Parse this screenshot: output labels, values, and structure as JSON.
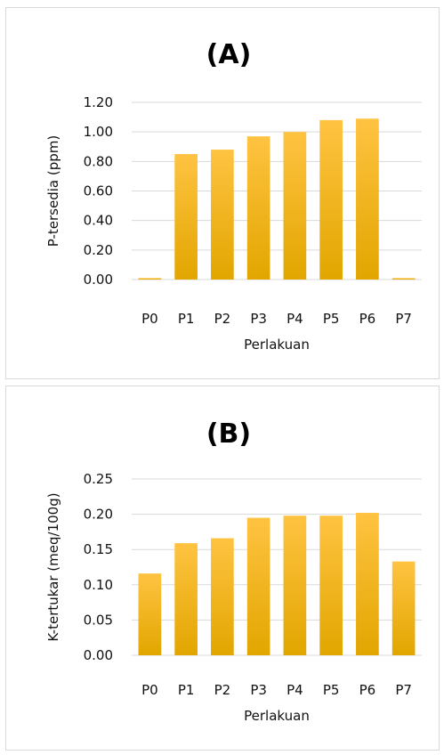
{
  "chart_data": [
    {
      "type": "bar",
      "title": "(A)",
      "xlabel": "Perlakuan",
      "ylabel": "P-tersedia (ppm)",
      "categories": [
        "P0",
        "P1",
        "P2",
        "P3",
        "P4",
        "P5",
        "P6",
        "P7"
      ],
      "values": [
        0.01,
        0.85,
        0.88,
        0.97,
        1.0,
        1.08,
        1.09,
        0.01
      ],
      "ylim": [
        0,
        1.2
      ],
      "yticks": [
        "0.00",
        "0.20",
        "0.40",
        "0.60",
        "0.80",
        "1.00",
        "1.20"
      ],
      "grid": true,
      "colors": {
        "bar_top": "#ffc342",
        "bar_bottom": "#e2a600",
        "grid": "#d9d9d9"
      }
    },
    {
      "type": "bar",
      "title": "(B)",
      "xlabel": "Perlakuan",
      "ylabel": "K-tertukar (meq/100g)",
      "categories": [
        "P0",
        "P1",
        "P2",
        "P3",
        "P4",
        "P5",
        "P6",
        "P7"
      ],
      "values": [
        0.116,
        0.159,
        0.166,
        0.195,
        0.198,
        0.198,
        0.202,
        0.133
      ],
      "ylim": [
        0,
        0.25
      ],
      "yticks": [
        "0.00",
        "0.05",
        "0.10",
        "0.15",
        "0.20",
        "0.25"
      ],
      "grid": true,
      "colors": {
        "bar_top": "#ffc342",
        "bar_bottom": "#e2a600",
        "grid": "#d9d9d9"
      }
    }
  ]
}
